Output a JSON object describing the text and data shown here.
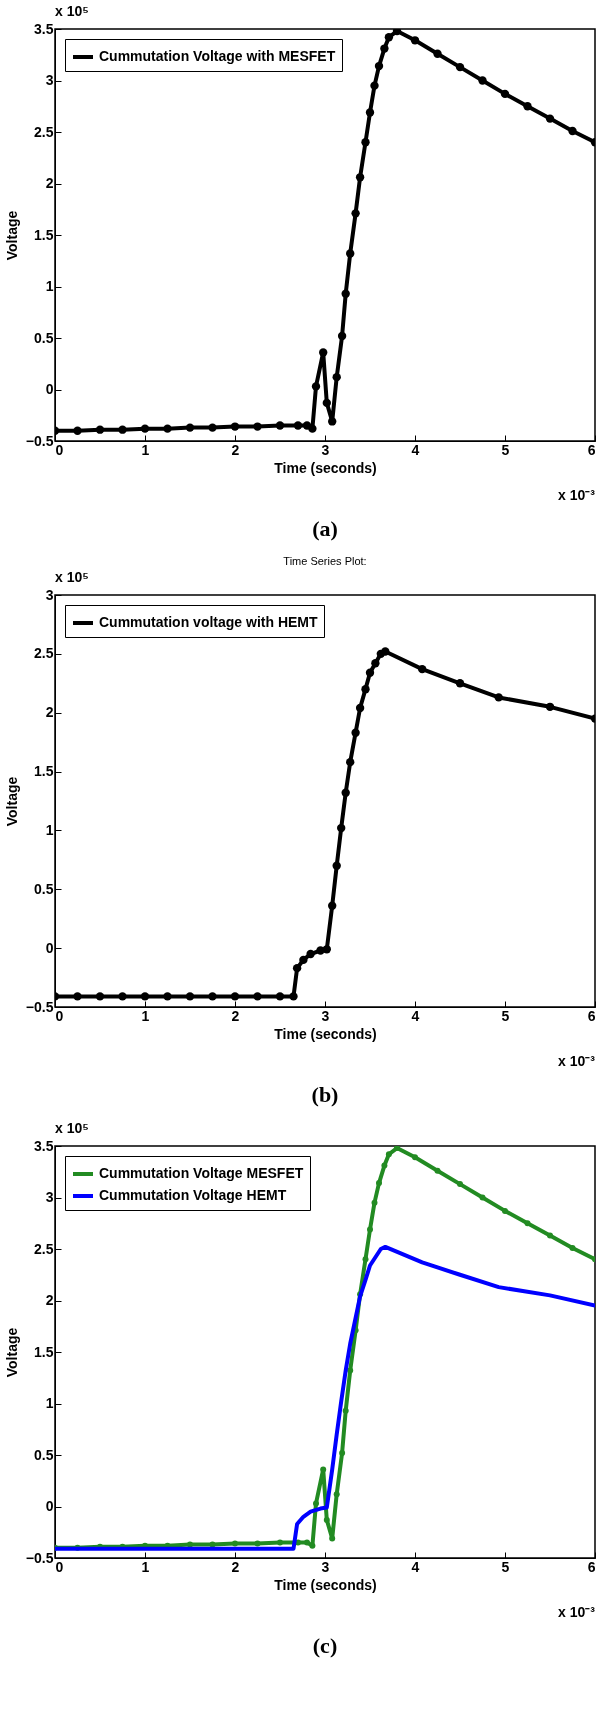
{
  "chart_data": [
    {
      "type": "line",
      "xlabel": "Time (seconds)",
      "ylabel": "Voltage",
      "xlim": [
        0,
        6
      ],
      "ylim": [
        -0.5,
        3.5
      ],
      "xticks": [
        0,
        1,
        2,
        3,
        4,
        5,
        6
      ],
      "yticks": [
        -0.5,
        0,
        0.5,
        1,
        1.5,
        2,
        2.5,
        3,
        3.5
      ],
      "legend": "top left",
      "marker": "circle",
      "grid": false,
      "annotations": [
        "x 10⁵",
        "x 10⁻³",
        "(a)"
      ],
      "series": [
        {
          "name": "Cummutation Voltage with MESFET",
          "color": "#000000",
          "x": [
            0,
            0.25,
            0.5,
            0.75,
            1,
            1.25,
            1.5,
            1.75,
            2,
            2.25,
            2.5,
            2.7,
            2.8,
            2.86,
            2.9,
            2.98,
            3.02,
            3.08,
            3.13,
            3.19,
            3.23,
            3.28,
            3.34,
            3.39,
            3.45,
            3.5,
            3.55,
            3.6,
            3.66,
            3.71,
            3.8,
            4.0,
            4.25,
            4.5,
            4.75,
            5.0,
            5.25,
            5.5,
            5.75,
            6.0
          ],
          "values": [
            -0.4,
            -0.4,
            -0.39,
            -0.39,
            -0.38,
            -0.38,
            -0.37,
            -0.37,
            -0.36,
            -0.36,
            -0.35,
            -0.35,
            -0.35,
            -0.38,
            0.03,
            0.36,
            -0.13,
            -0.31,
            0.12,
            0.52,
            0.93,
            1.32,
            1.71,
            2.06,
            2.4,
            2.69,
            2.95,
            3.14,
            3.31,
            3.42,
            3.48,
            3.39,
            3.26,
            3.13,
            3.0,
            2.87,
            2.75,
            2.63,
            2.51,
            2.4
          ]
        }
      ]
    },
    {
      "type": "line",
      "title": "Time Series Plot:",
      "xlabel": "Time (seconds)",
      "ylabel": "Voltage",
      "xlim": [
        0,
        6
      ],
      "ylim": [
        -0.5,
        3
      ],
      "xticks": [
        0,
        1,
        2,
        3,
        4,
        5,
        6
      ],
      "yticks": [
        -0.5,
        0,
        0.5,
        1,
        1.5,
        2,
        2.5,
        3
      ],
      "legend": "top left",
      "marker": "circle",
      "grid": false,
      "annotations": [
        "x 10⁵",
        "x 10⁻³",
        "(b)"
      ],
      "series": [
        {
          "name": "Cummutation voltage with HEMT",
          "color": "#000000",
          "x": [
            0,
            0.25,
            0.5,
            0.75,
            1,
            1.25,
            1.5,
            1.75,
            2,
            2.25,
            2.5,
            2.65,
            2.69,
            2.76,
            2.84,
            2.95,
            3.02,
            3.08,
            3.13,
            3.18,
            3.23,
            3.28,
            3.34,
            3.39,
            3.45,
            3.5,
            3.56,
            3.62,
            3.67,
            4.08,
            4.5,
            4.93,
            5.5,
            6.0
          ],
          "values": [
            -0.41,
            -0.41,
            -0.41,
            -0.41,
            -0.41,
            -0.41,
            -0.41,
            -0.41,
            -0.41,
            -0.41,
            -0.41,
            -0.41,
            -0.17,
            -0.1,
            -0.05,
            -0.02,
            -0.01,
            0.36,
            0.7,
            1.02,
            1.32,
            1.58,
            1.83,
            2.04,
            2.2,
            2.34,
            2.42,
            2.5,
            2.52,
            2.37,
            2.25,
            2.13,
            2.05,
            1.95
          ]
        }
      ]
    },
    {
      "type": "line",
      "xlabel": "Time (seconds)",
      "ylabel": "Voltage",
      "xlim": [
        0,
        6
      ],
      "ylim": [
        -0.5,
        3.5
      ],
      "xticks": [
        0,
        1,
        2,
        3,
        4,
        5,
        6
      ],
      "yticks": [
        -0.5,
        0,
        0.5,
        1,
        1.5,
        2,
        2.5,
        3,
        3.5
      ],
      "legend": "top left",
      "grid": false,
      "annotations": [
        "x 10⁵",
        "x 10⁻³",
        "(c)"
      ],
      "series": [
        {
          "name": "Cummutation Voltage MESFET",
          "color": "#228b22",
          "marker": "circle",
          "x": [
            0,
            0.25,
            0.5,
            0.75,
            1,
            1.25,
            1.5,
            1.75,
            2,
            2.25,
            2.5,
            2.7,
            2.8,
            2.86,
            2.9,
            2.98,
            3.02,
            3.08,
            3.13,
            3.19,
            3.23,
            3.28,
            3.34,
            3.39,
            3.45,
            3.5,
            3.55,
            3.6,
            3.66,
            3.71,
            3.8,
            4.0,
            4.25,
            4.5,
            4.75,
            5.0,
            5.25,
            5.5,
            5.75,
            6.0
          ],
          "values": [
            -0.4,
            -0.4,
            -0.39,
            -0.39,
            -0.38,
            -0.38,
            -0.37,
            -0.37,
            -0.36,
            -0.36,
            -0.35,
            -0.35,
            -0.35,
            -0.38,
            0.03,
            0.36,
            -0.13,
            -0.31,
            0.12,
            0.52,
            0.93,
            1.32,
            1.71,
            2.06,
            2.4,
            2.69,
            2.95,
            3.14,
            3.31,
            3.42,
            3.48,
            3.39,
            3.26,
            3.13,
            3.0,
            2.87,
            2.75,
            2.63,
            2.51,
            2.4
          ]
        },
        {
          "name": "Cummutation Voltage HEMT",
          "color": "#0000ff",
          "marker": "none",
          "x": [
            0,
            0.25,
            0.5,
            0.75,
            1,
            1.25,
            1.5,
            1.75,
            2,
            2.25,
            2.5,
            2.65,
            2.69,
            2.76,
            2.84,
            2.95,
            3.02,
            3.08,
            3.13,
            3.18,
            3.23,
            3.28,
            3.34,
            3.39,
            3.45,
            3.5,
            3.56,
            3.62,
            3.67,
            4.08,
            4.5,
            4.93,
            5.5,
            6.0
          ],
          "values": [
            -0.41,
            -0.41,
            -0.41,
            -0.41,
            -0.41,
            -0.41,
            -0.41,
            -0.41,
            -0.41,
            -0.41,
            -0.41,
            -0.41,
            -0.17,
            -0.1,
            -0.05,
            -0.02,
            -0.01,
            0.36,
            0.7,
            1.02,
            1.32,
            1.58,
            1.83,
            2.04,
            2.2,
            2.34,
            2.42,
            2.5,
            2.52,
            2.37,
            2.25,
            2.13,
            2.05,
            1.95
          ]
        }
      ]
    }
  ]
}
